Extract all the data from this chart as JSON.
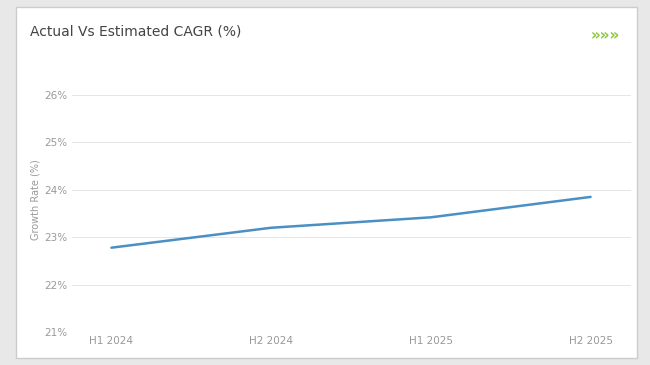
{
  "title": "Actual Vs Estimated CAGR (%)",
  "x_labels": [
    "H1 2024",
    "H2 2024",
    "H1 2025",
    "H2 2025"
  ],
  "x_values": [
    0,
    1,
    2,
    3
  ],
  "y_values": [
    22.78,
    23.2,
    23.42,
    23.85
  ],
  "ylim": [
    21,
    26.6
  ],
  "yticks": [
    21,
    22,
    23,
    24,
    25,
    26
  ],
  "ytick_labels": [
    "21%",
    "22%",
    "23%",
    "24%",
    "25%",
    "26%"
  ],
  "ylabel": "Growth Rate (%)",
  "line_color": "#4a90c4",
  "line_width": 1.8,
  "bg_color": "#e8e8e8",
  "card_color": "#ffffff",
  "title_color": "#444444",
  "title_fontsize": 10,
  "header_bar_color": "#8DC63F",
  "tick_color": "#999999",
  "grid_color": "#e0e0e0",
  "chevron_color": "#8DC63F",
  "card_border_color": "#cccccc"
}
